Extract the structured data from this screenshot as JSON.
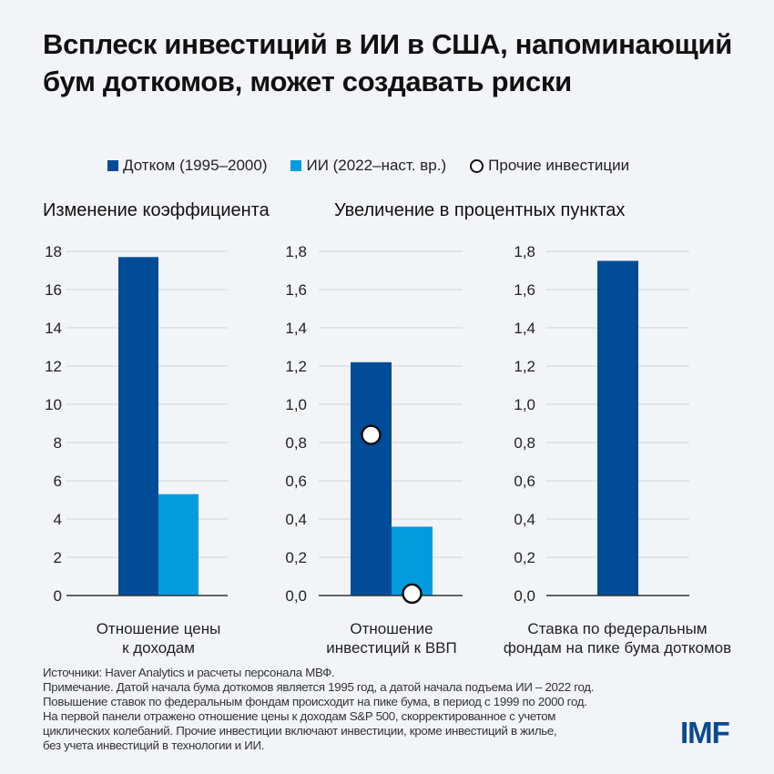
{
  "title": "Всплеск инвестиций в ИИ в США, напоминающий бум доткомов, может создавать риски",
  "legend": {
    "dotcom": "Дотком (1995–2000)",
    "ai": "ИИ (2022–наст. вр.)",
    "other": "Прочие инвестиции"
  },
  "subtitles": {
    "left": "Изменение коэффициента",
    "right": "Увеличение в процентных пунктах"
  },
  "colors": {
    "dotcom": "#004c97",
    "ai": "#009cde",
    "grid": "#dde0e4",
    "axis": "#333333"
  },
  "chart_data": [
    {
      "type": "bar",
      "xlabel": "Отношение цены к доходам",
      "xlabel_lines": [
        "Отношение цены",
        "к доходам"
      ],
      "ylim": [
        0,
        18
      ],
      "yticks": [
        "0",
        "2",
        "4",
        "6",
        "8",
        "10",
        "12",
        "14",
        "16",
        "18"
      ],
      "series": [
        {
          "name": "Дотком (1995–2000)",
          "values": [
            17.7
          ]
        },
        {
          "name": "ИИ (2022–наст. вр.)",
          "values": [
            5.3
          ]
        }
      ]
    },
    {
      "type": "bar",
      "xlabel": "Отношение инвестиций к ВВП",
      "xlabel_lines": [
        "Отношение",
        "инвестиций к ВВП"
      ],
      "ylim": [
        0,
        1.8
      ],
      "yticks": [
        "0,0",
        "0,2",
        "0,4",
        "0,6",
        "0,8",
        "1,0",
        "1,2",
        "1,4",
        "1,6",
        "1,8"
      ],
      "series": [
        {
          "name": "Дотком (1995–2000)",
          "values": [
            1.22
          ]
        },
        {
          "name": "ИИ (2022–наст. вр.)",
          "values": [
            0.36
          ]
        }
      ],
      "markers": {
        "name": "Прочие инвестиции",
        "values": [
          0.84,
          0.01
        ]
      }
    },
    {
      "type": "bar",
      "xlabel": "Ставка по федеральным фондам на пике бума доткомов",
      "xlabel_lines": [
        "Ставка по федеральным",
        "фондам на пике бума доткомов"
      ],
      "ylim": [
        0,
        1.8
      ],
      "yticks": [
        "0,0",
        "0,2",
        "0,4",
        "0,6",
        "0,8",
        "1,0",
        "1,2",
        "1,4",
        "1,6",
        "1,8"
      ],
      "series": [
        {
          "name": "Дотком (1995–2000)",
          "values": [
            1.75
          ]
        }
      ]
    }
  ],
  "footnote": [
    "Источники: Haver Analytics и расчеты персонала МВФ.",
    "Примечание. Датой начала бума доткомов является 1995 год, а датой начала подъема ИИ – 2022 год.",
    "Повышение ставок по федеральным фондам происходит на пике бума, в период с 1999 по 2000 год.",
    "На первой панели отражено отношение цены к доходам S&P 500, скорректированное с учетом",
    "циклических колебаний. Прочие инвестиции включают инвестиции, кроме инвестиций в жилье,",
    "без учета инвестиций в технологии и ИИ."
  ],
  "logo": "IMF"
}
